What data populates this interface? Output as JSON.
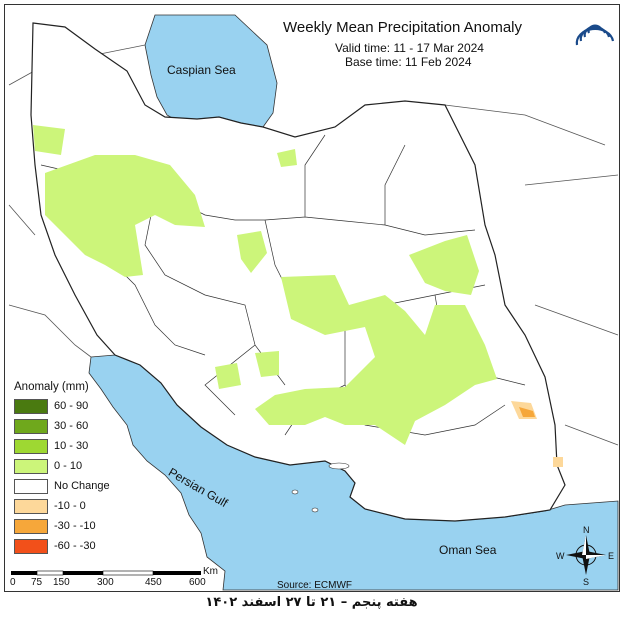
{
  "title": "Weekly Mean Precipitation Anomaly",
  "valid_time": "Valid time:  11 - 17 Mar 2024",
  "base_time": "Base time: 11 Feb 2024",
  "legend": {
    "title": "Anomaly (mm)",
    "items": [
      {
        "label": "60 - 90",
        "color": "#4a7a10"
      },
      {
        "label": "30 - 60",
        "color": "#6fa81c"
      },
      {
        "label": "10 - 30",
        "color": "#9ed832"
      },
      {
        "label": "0 - 10",
        "color": "#ccf57a"
      },
      {
        "label": "No Change",
        "color": "#ffffff"
      },
      {
        "label": "-10 - 0",
        "color": "#fdd89a"
      },
      {
        "label": "-30 - -10",
        "color": "#f6a73a"
      },
      {
        "label": "-60 - -30",
        "color": "#f2501a"
      }
    ]
  },
  "labels": {
    "caspian": "Caspian Sea",
    "gulf": "Persian Gulf",
    "oman": "Oman Sea"
  },
  "scale": {
    "ticks": [
      "0",
      "75",
      "150",
      "300",
      "450",
      "600"
    ],
    "unit": "Km"
  },
  "compass": {
    "n": "N",
    "s": "S",
    "e": "E",
    "w": "W"
  },
  "source": "Source: ECMWF",
  "footer": "هفته پنجم – ۲۱ تا ۲۷ اسفند ۱۴۰۲",
  "colors": {
    "sea": "#99d2f0",
    "land": "#ffffff",
    "border": "#333333",
    "logo": "#1a4a8a"
  }
}
